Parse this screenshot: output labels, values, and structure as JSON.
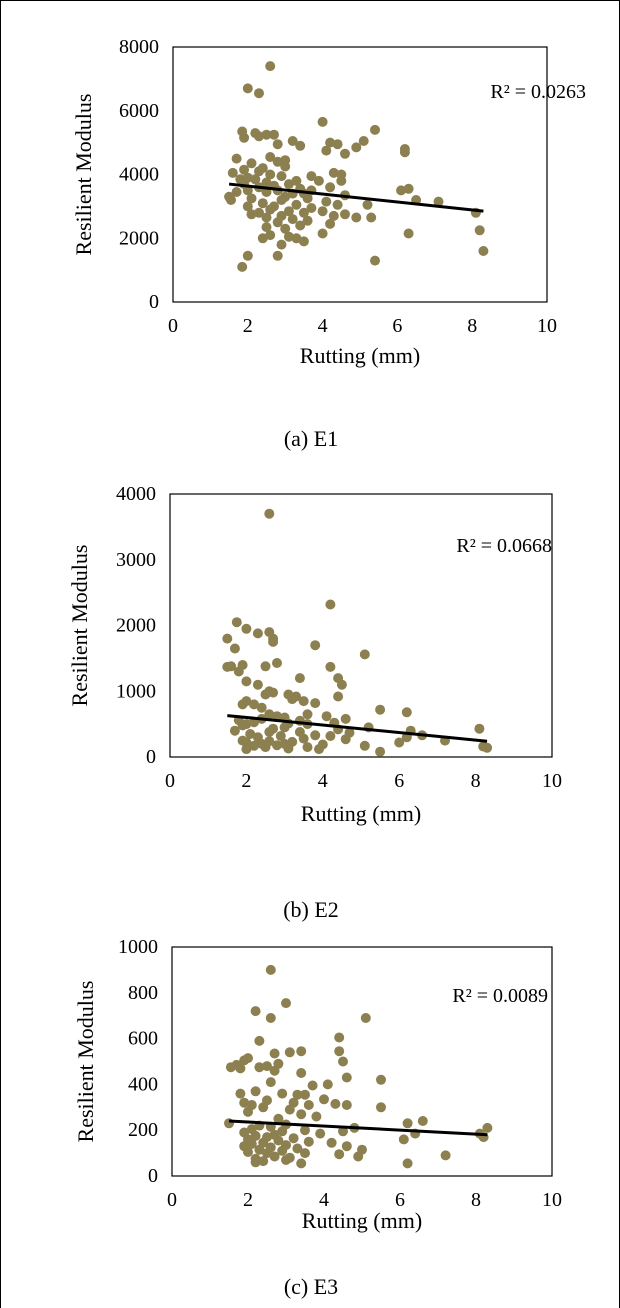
{
  "chart_data": [
    {
      "type": "scatter",
      "caption": "(a) E1",
      "xlabel": "Rutting (mm)",
      "ylabel": "Resilient Modulus",
      "xlim": [
        0,
        10
      ],
      "ylim": [
        0,
        8000
      ],
      "xticks": [
        "0",
        "2",
        "4",
        "6",
        "8",
        "10"
      ],
      "yticks": [
        "0",
        "2000",
        "4000",
        "6000",
        "8000"
      ],
      "grid": false,
      "marker_color": "#8c8050",
      "trend_color": "#000000",
      "annotation": "R² = 0.0263",
      "trendline": {
        "x": [
          1.5,
          8.3
        ],
        "y": [
          3700,
          2850
        ]
      },
      "points": [
        [
          2.6,
          7400
        ],
        [
          2.0,
          6700
        ],
        [
          2.3,
          6550
        ],
        [
          4.0,
          5650
        ],
        [
          5.4,
          5400
        ],
        [
          1.85,
          5350
        ],
        [
          2.2,
          5300
        ],
        [
          2.5,
          5250
        ],
        [
          2.7,
          5250
        ],
        [
          2.3,
          5200
        ],
        [
          1.9,
          5150
        ],
        [
          3.2,
          5050
        ],
        [
          5.1,
          5050
        ],
        [
          4.2,
          5000
        ],
        [
          4.4,
          4950
        ],
        [
          2.8,
          4950
        ],
        [
          3.4,
          4900
        ],
        [
          4.9,
          4850
        ],
        [
          4.1,
          4750
        ],
        [
          6.2,
          4800
        ],
        [
          6.2,
          4700
        ],
        [
          4.6,
          4650
        ],
        [
          2.6,
          4550
        ],
        [
          3.0,
          4450
        ],
        [
          1.7,
          4500
        ],
        [
          2.8,
          4400
        ],
        [
          2.1,
          4350
        ],
        [
          3.0,
          4250
        ],
        [
          2.4,
          4200
        ],
        [
          1.9,
          4150
        ],
        [
          2.3,
          4100
        ],
        [
          1.6,
          4050
        ],
        [
          4.3,
          4050
        ],
        [
          4.5,
          4000
        ],
        [
          2.6,
          4000
        ],
        [
          2.9,
          3950
        ],
        [
          3.7,
          3950
        ],
        [
          2.0,
          3900
        ],
        [
          1.8,
          3850
        ],
        [
          2.2,
          3850
        ],
        [
          3.3,
          3800
        ],
        [
          3.9,
          3800
        ],
        [
          4.5,
          3800
        ],
        [
          2.5,
          3750
        ],
        [
          1.9,
          3700
        ],
        [
          3.1,
          3700
        ],
        [
          2.7,
          3650
        ],
        [
          2.3,
          3600
        ],
        [
          4.2,
          3600
        ],
        [
          3.4,
          3550
        ],
        [
          6.3,
          3550
        ],
        [
          2.0,
          3500
        ],
        [
          2.8,
          3500
        ],
        [
          3.7,
          3500
        ],
        [
          6.1,
          3500
        ],
        [
          1.7,
          3450
        ],
        [
          2.5,
          3450
        ],
        [
          3.2,
          3400
        ],
        [
          3.5,
          3400
        ],
        [
          4.6,
          3350
        ],
        [
          3.0,
          3300
        ],
        [
          1.5,
          3300
        ],
        [
          2.1,
          3250
        ],
        [
          3.6,
          3250
        ],
        [
          2.9,
          3200
        ],
        [
          6.5,
          3200
        ],
        [
          7.1,
          3150
        ],
        [
          1.55,
          3200
        ],
        [
          4.1,
          3150
        ],
        [
          2.4,
          3100
        ],
        [
          3.3,
          3050
        ],
        [
          4.4,
          3050
        ],
        [
          5.2,
          3050
        ],
        [
          2.7,
          3000
        ],
        [
          2.0,
          3000
        ],
        [
          3.7,
          2950
        ],
        [
          2.6,
          2900
        ],
        [
          3.1,
          2850
        ],
        [
          4.0,
          2850
        ],
        [
          8.1,
          2800
        ],
        [
          2.3,
          2800
        ],
        [
          3.5,
          2800
        ],
        [
          4.6,
          2750
        ],
        [
          2.1,
          2750
        ],
        [
          2.9,
          2700
        ],
        [
          4.3,
          2700
        ],
        [
          4.9,
          2650
        ],
        [
          5.3,
          2650
        ],
        [
          2.5,
          2650
        ],
        [
          3.2,
          2600
        ],
        [
          3.6,
          2550
        ],
        [
          2.8,
          2500
        ],
        [
          4.2,
          2450
        ],
        [
          3.4,
          2400
        ],
        [
          2.5,
          2350
        ],
        [
          3.0,
          2300
        ],
        [
          8.2,
          2250
        ],
        [
          4.0,
          2150
        ],
        [
          6.3,
          2150
        ],
        [
          2.6,
          2100
        ],
        [
          3.1,
          2050
        ],
        [
          3.3,
          2000
        ],
        [
          2.4,
          2000
        ],
        [
          3.5,
          1900
        ],
        [
          2.9,
          1800
        ],
        [
          8.3,
          1600
        ],
        [
          2.0,
          1450
        ],
        [
          2.8,
          1450
        ],
        [
          5.4,
          1300
        ],
        [
          1.85,
          1100
        ]
      ]
    },
    {
      "type": "scatter",
      "caption": "(b) E2",
      "xlabel": "Rutting (mm)",
      "ylabel": "Resilient Modulus",
      "xlim": [
        0,
        10
      ],
      "ylim": [
        0,
        4000
      ],
      "xticks": [
        "0",
        "2",
        "4",
        "6",
        "8",
        "10"
      ],
      "yticks": [
        "0",
        "1000",
        "2000",
        "3000",
        "4000"
      ],
      "grid": false,
      "marker_color": "#8c8050",
      "trend_color": "#000000",
      "annotation": "R² = 0.0668",
      "trendline": {
        "x": [
          1.5,
          8.3
        ],
        "y": [
          630,
          240
        ]
      },
      "points": [
        [
          2.6,
          3700
        ],
        [
          4.2,
          2320
        ],
        [
          1.75,
          2050
        ],
        [
          2.0,
          1950
        ],
        [
          2.6,
          1900
        ],
        [
          2.3,
          1880
        ],
        [
          1.5,
          1800
        ],
        [
          2.7,
          1800
        ],
        [
          2.7,
          1750
        ],
        [
          3.8,
          1700
        ],
        [
          1.7,
          1650
        ],
        [
          5.1,
          1560
        ],
        [
          2.8,
          1430
        ],
        [
          1.9,
          1400
        ],
        [
          1.6,
          1380
        ],
        [
          2.5,
          1380
        ],
        [
          1.5,
          1370
        ],
        [
          4.2,
          1370
        ],
        [
          1.8,
          1300
        ],
        [
          3.4,
          1200
        ],
        [
          4.4,
          1200
        ],
        [
          2.0,
          1150
        ],
        [
          4.5,
          1100
        ],
        [
          2.3,
          1100
        ],
        [
          2.6,
          1000
        ],
        [
          2.7,
          980
        ],
        [
          2.5,
          950
        ],
        [
          3.1,
          950
        ],
        [
          3.3,
          920
        ],
        [
          4.4,
          920
        ],
        [
          3.2,
          880
        ],
        [
          2.0,
          850
        ],
        [
          3.5,
          850
        ],
        [
          3.8,
          820
        ],
        [
          2.2,
          800
        ],
        [
          1.9,
          800
        ],
        [
          2.4,
          750
        ],
        [
          5.5,
          720
        ],
        [
          6.2,
          680
        ],
        [
          3.6,
          650
        ],
        [
          2.6,
          650
        ],
        [
          2.8,
          620
        ],
        [
          4.1,
          620
        ],
        [
          3.0,
          600
        ],
        [
          4.6,
          580
        ],
        [
          2.4,
          580
        ],
        [
          1.8,
          560
        ],
        [
          3.4,
          550
        ],
        [
          2.2,
          530
        ],
        [
          4.3,
          520
        ],
        [
          3.1,
          510
        ],
        [
          2.0,
          500
        ],
        [
          3.6,
          500
        ],
        [
          1.9,
          480
        ],
        [
          5.2,
          450
        ],
        [
          3.0,
          450
        ],
        [
          2.7,
          430
        ],
        [
          8.1,
          430
        ],
        [
          4.4,
          420
        ],
        [
          6.3,
          400
        ],
        [
          1.7,
          400
        ],
        [
          2.6,
          380
        ],
        [
          3.4,
          380
        ],
        [
          4.7,
          370
        ],
        [
          6.6,
          330
        ],
        [
          2.1,
          350
        ],
        [
          3.8,
          330
        ],
        [
          2.9,
          320
        ],
        [
          4.2,
          320
        ],
        [
          6.2,
          300
        ],
        [
          2.3,
          300
        ],
        [
          3.5,
          280
        ],
        [
          4.6,
          270
        ],
        [
          7.2,
          250
        ],
        [
          1.9,
          250
        ],
        [
          2.6,
          240
        ],
        [
          3.2,
          230
        ],
        [
          2.0,
          220
        ],
        [
          6.0,
          220
        ],
        [
          2.4,
          200
        ],
        [
          3.0,
          200
        ],
        [
          4.0,
          190
        ],
        [
          2.8,
          180
        ],
        [
          5.1,
          170
        ],
        [
          2.2,
          170
        ],
        [
          8.2,
          160
        ],
        [
          3.6,
          150
        ],
        [
          2.5,
          150
        ],
        [
          8.3,
          140
        ],
        [
          3.1,
          130
        ],
        [
          2.0,
          120
        ],
        [
          3.9,
          120
        ],
        [
          5.5,
          80
        ]
      ]
    },
    {
      "type": "scatter",
      "caption": "(c) E3",
      "xlabel": "Rutting (mm)",
      "ylabel": "Resilient Modulus",
      "xlim": [
        0,
        10
      ],
      "ylim": [
        0,
        1000
      ],
      "xticks": [
        "0",
        "2",
        "4",
        "6",
        "8",
        "10"
      ],
      "yticks": [
        "0",
        "200",
        "400",
        "600",
        "800",
        "1000"
      ],
      "grid": false,
      "marker_color": "#8c8050",
      "trend_color": "#000000",
      "annotation": "R² = 0.0089",
      "trendline": {
        "x": [
          1.5,
          8.3
        ],
        "y": [
          240,
          180
        ]
      },
      "points": [
        [
          2.6,
          900
        ],
        [
          3.0,
          755
        ],
        [
          2.2,
          720
        ],
        [
          2.6,
          690
        ],
        [
          5.1,
          690
        ],
        [
          4.4,
          605
        ],
        [
          2.3,
          590
        ],
        [
          3.4,
          545
        ],
        [
          4.4,
          545
        ],
        [
          3.1,
          540
        ],
        [
          2.7,
          535
        ],
        [
          2.0,
          515
        ],
        [
          1.9,
          505
        ],
        [
          4.5,
          500
        ],
        [
          2.8,
          490
        ],
        [
          1.7,
          485
        ],
        [
          2.5,
          480
        ],
        [
          1.55,
          475
        ],
        [
          2.3,
          475
        ],
        [
          1.8,
          470
        ],
        [
          2.7,
          460
        ],
        [
          3.4,
          450
        ],
        [
          4.6,
          430
        ],
        [
          5.5,
          420
        ],
        [
          2.6,
          410
        ],
        [
          4.1,
          400
        ],
        [
          3.7,
          395
        ],
        [
          2.2,
          370
        ],
        [
          1.8,
          360
        ],
        [
          2.9,
          360
        ],
        [
          3.3,
          355
        ],
        [
          3.5,
          355
        ],
        [
          4.0,
          335
        ],
        [
          2.5,
          330
        ],
        [
          1.9,
          320
        ],
        [
          3.2,
          320
        ],
        [
          4.3,
          315
        ],
        [
          2.1,
          310
        ],
        [
          3.6,
          310
        ],
        [
          4.6,
          310
        ],
        [
          5.5,
          300
        ],
        [
          2.4,
          300
        ],
        [
          3.1,
          290
        ],
        [
          2.0,
          280
        ],
        [
          3.4,
          270
        ],
        [
          3.8,
          260
        ],
        [
          2.8,
          250
        ],
        [
          6.6,
          240
        ],
        [
          1.5,
          230
        ],
        [
          6.2,
          230
        ],
        [
          3.0,
          225
        ],
        [
          2.3,
          220
        ],
        [
          2.6,
          215
        ],
        [
          8.3,
          210
        ],
        [
          4.8,
          210
        ],
        [
          2.1,
          205
        ],
        [
          3.5,
          200
        ],
        [
          4.5,
          195
        ],
        [
          2.9,
          195
        ],
        [
          1.9,
          190
        ],
        [
          6.4,
          185
        ],
        [
          8.1,
          185
        ],
        [
          3.9,
          185
        ],
        [
          2.7,
          180
        ],
        [
          2.2,
          175
        ],
        [
          8.2,
          170
        ],
        [
          2.5,
          170
        ],
        [
          3.2,
          165
        ],
        [
          2.0,
          160
        ],
        [
          6.1,
          160
        ],
        [
          2.8,
          155
        ],
        [
          3.6,
          150
        ],
        [
          2.4,
          145
        ],
        [
          4.2,
          145
        ],
        [
          2.1,
          140
        ],
        [
          3.0,
          135
        ],
        [
          1.9,
          130
        ],
        [
          4.6,
          130
        ],
        [
          2.6,
          125
        ],
        [
          3.3,
          120
        ],
        [
          2.3,
          115
        ],
        [
          5.0,
          115
        ],
        [
          2.9,
          110
        ],
        [
          2.0,
          105
        ],
        [
          3.5,
          100
        ],
        [
          2.5,
          100
        ],
        [
          4.4,
          95
        ],
        [
          7.2,
          90
        ],
        [
          2.7,
          85
        ],
        [
          4.9,
          85
        ],
        [
          3.1,
          80
        ],
        [
          2.2,
          75
        ],
        [
          3.0,
          70
        ],
        [
          2.4,
          65
        ],
        [
          2.2,
          60
        ],
        [
          3.4,
          55
        ],
        [
          6.2,
          55
        ]
      ]
    }
  ]
}
